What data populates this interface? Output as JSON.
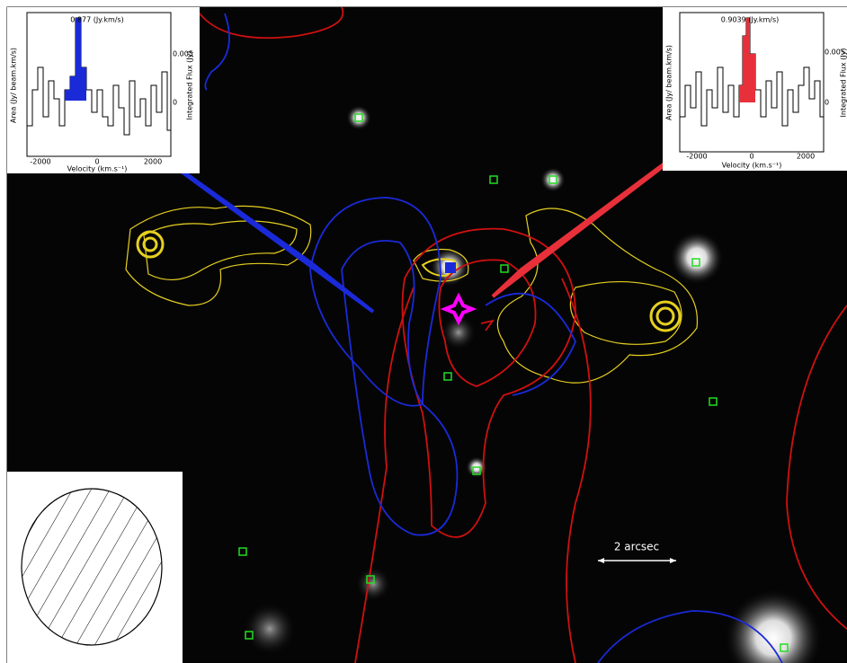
{
  "insets": [
    {
      "flux_label": "0.877 (Jy.km/s)",
      "y_label": "Area (Jy/ beam.km/s)",
      "y2_label": "Integrated Flux (Jy)",
      "x_label": "Velocity (km.s⁻¹)",
      "x_ticks": [
        "-2000",
        "0",
        "2000"
      ],
      "y2_ticks": [
        "0.005",
        "0"
      ]
    },
    {
      "flux_label": "0.9039 (Jy.km/s)",
      "y_label": "Area (Jy/ beam.km/s)",
      "y2_label": "Integrated Flux (Jy)",
      "x_label": "Velocity (km.s⁻¹)",
      "x_ticks": [
        "-2000",
        "0",
        "2000"
      ],
      "y2_ticks": [
        "0.005",
        "0"
      ]
    }
  ],
  "scale_bar": {
    "label": "2 arcsec"
  }
}
